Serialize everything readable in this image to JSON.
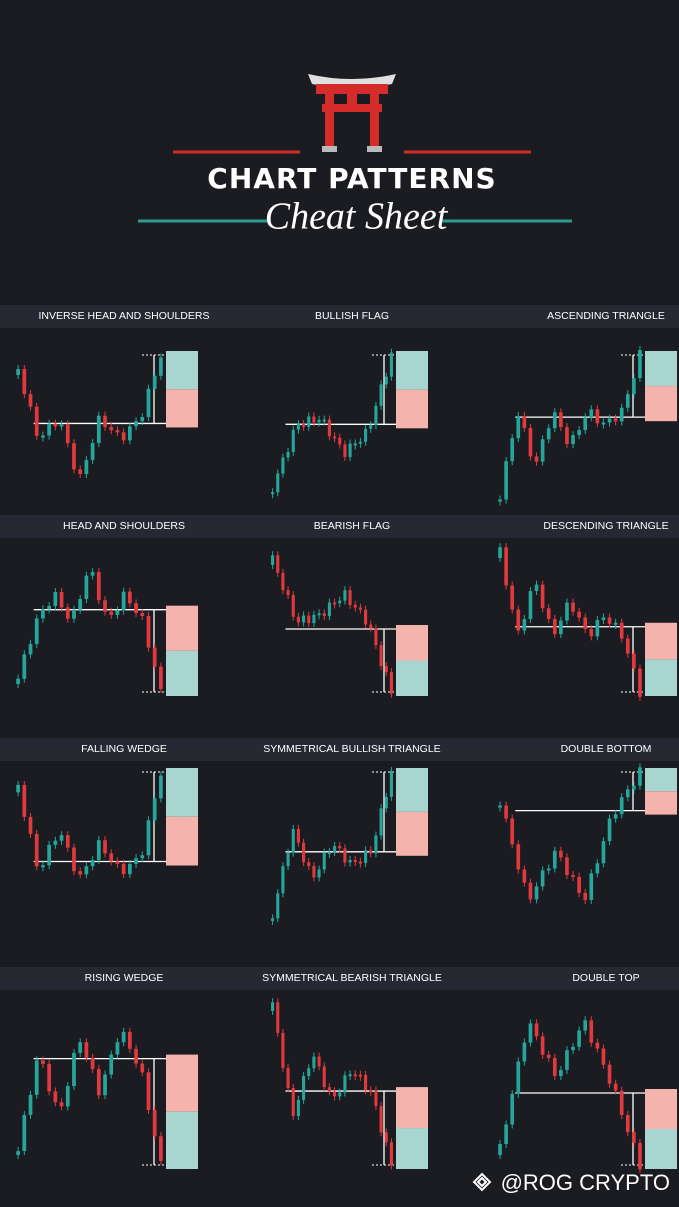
{
  "header": {
    "title": "CHART PATTERNS",
    "subtitle": "Cheat Sheet"
  },
  "patterns": [
    {
      "label": "INVERSE HEAD AND SHOULDERS"
    },
    {
      "label": "BULLISH FLAG"
    },
    {
      "label": "ASCENDING TRIANGLE"
    },
    {
      "label": "HEAD AND SHOULDERS"
    },
    {
      "label": "BEARISH FLAG"
    },
    {
      "label": "DESCENDING TRIANGLE"
    },
    {
      "label": "FALLING WEDGE"
    },
    {
      "label": "SYMMETRICAL BULLISH  TRIANGLE"
    },
    {
      "label": "DOUBLE BOTTOM"
    },
    {
      "label": "RISING WEDGE"
    },
    {
      "label": "SYMMETRICAL  BEARISH TRIANGLE"
    },
    {
      "label": "DOUBLE  TOP"
    }
  ],
  "watermark": "@ROG CRYPTO"
}
